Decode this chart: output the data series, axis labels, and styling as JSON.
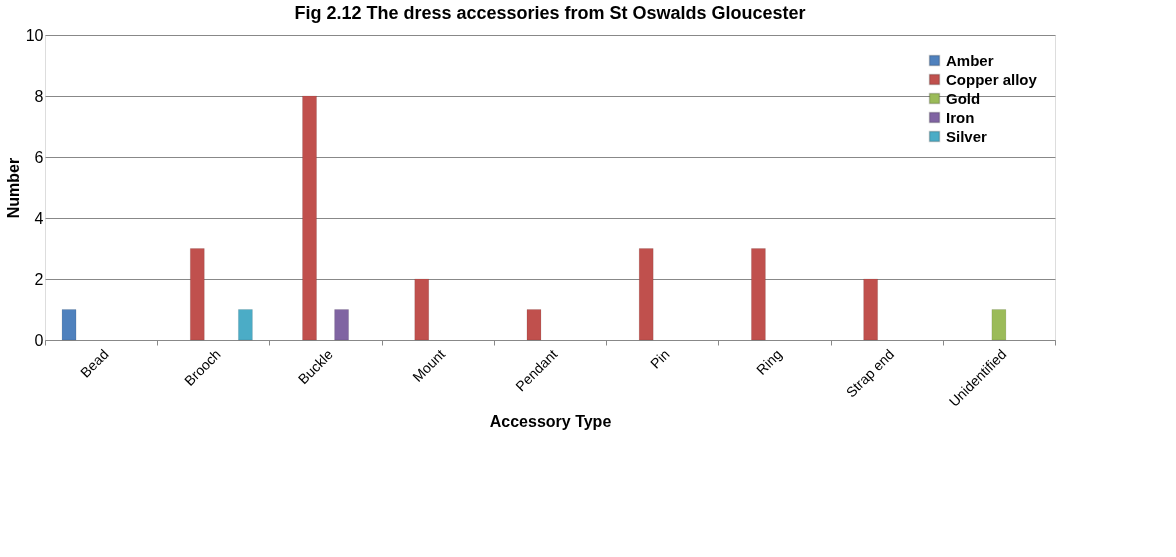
{
  "chart_data": {
    "type": "bar",
    "title": "Fig 2.12 The dress accessories from St Oswalds Gloucester",
    "xlabel": "Accessory Type",
    "ylabel": "Number",
    "categories": [
      "Bead",
      "Brooch",
      "Buckle",
      "Mount",
      "Pendant",
      "Pin",
      "Ring",
      "Strap end",
      "Unidentified"
    ],
    "series": [
      {
        "name": "Amber",
        "color": "#4f81bd",
        "values": [
          1,
          null,
          null,
          null,
          null,
          null,
          null,
          null,
          null
        ]
      },
      {
        "name": "Copper alloy",
        "color": "#c0504d",
        "values": [
          null,
          3,
          8,
          2,
          1,
          3,
          3,
          2,
          null
        ]
      },
      {
        "name": "Gold",
        "color": "#9bbb59",
        "values": [
          null,
          null,
          null,
          null,
          null,
          null,
          null,
          null,
          1
        ]
      },
      {
        "name": "Iron",
        "color": "#8064a2",
        "values": [
          null,
          null,
          1,
          null,
          null,
          null,
          null,
          null,
          null
        ]
      },
      {
        "name": "Silver",
        "color": "#4bacc6",
        "values": [
          null,
          1,
          null,
          null,
          null,
          null,
          null,
          null,
          null
        ]
      }
    ],
    "ylim": [
      0,
      10
    ],
    "yticks": [
      0,
      2,
      4,
      6,
      8,
      10
    ],
    "grid": "y",
    "legend": "top right"
  }
}
